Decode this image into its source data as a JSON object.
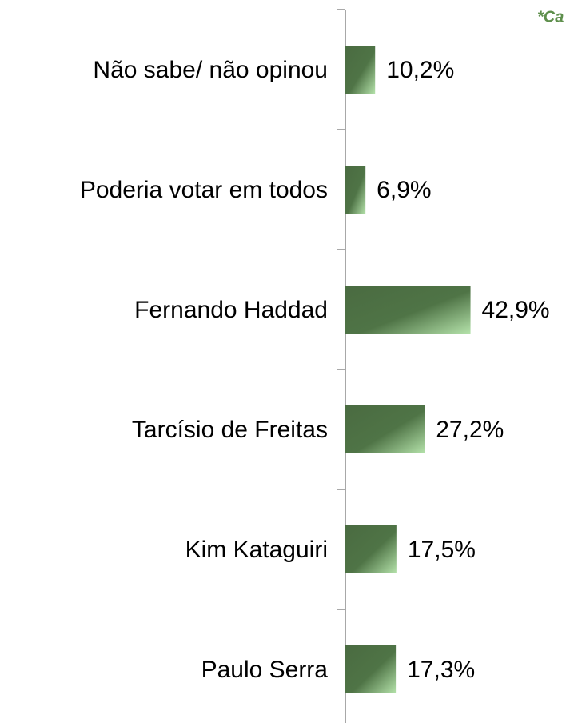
{
  "chart_data": {
    "type": "bar",
    "orientation": "horizontal",
    "annotation": "*Ca",
    "categories": [
      "Não sabe/ não opinou",
      "Poderia votar em todos",
      "Fernando Haddad",
      "Tarcísio de Freitas",
      "Kim Kataguiri",
      "Paulo Serra"
    ],
    "values": [
      10.2,
      6.9,
      42.9,
      27.2,
      17.5,
      17.3
    ],
    "value_labels": [
      "10,2%",
      "6,9%",
      "42,9%",
      "27,2%",
      "17,5%",
      "17,3%"
    ],
    "color": "#4a6b41",
    "xlim": [
      0,
      77
    ]
  }
}
